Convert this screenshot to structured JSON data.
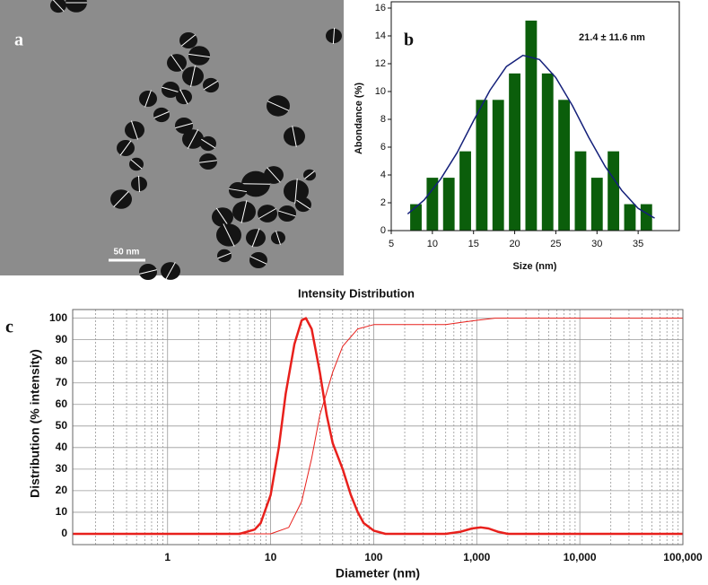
{
  "image": {
    "label": "a",
    "scale_bar": "50 nm"
  },
  "chart_data": [
    {
      "type": "bar",
      "label": "b",
      "annotation": "21.4 ± 11.6 nm",
      "xlabel": "Size (nm)",
      "ylabel": "Abondance (%)",
      "x": [
        8,
        10,
        12,
        14,
        16,
        18,
        20,
        22,
        24,
        26,
        28,
        30,
        32,
        34,
        36
      ],
      "values": [
        1.9,
        3.8,
        3.8,
        5.7,
        9.4,
        9.4,
        11.3,
        15.1,
        11.3,
        9.4,
        5.7,
        3.8,
        5.7,
        1.9,
        1.9
      ],
      "color": "#0b5e0b",
      "fit": {
        "x": [
          7,
          9,
          11,
          13,
          15,
          17,
          19,
          21,
          23,
          25,
          27,
          29,
          31,
          33,
          35,
          37
        ],
        "values": [
          1.2,
          2.2,
          3.7,
          5.6,
          7.9,
          10.1,
          11.8,
          12.6,
          12.3,
          11.0,
          9.0,
          6.7,
          4.6,
          2.9,
          1.6,
          0.9
        ],
        "color": "#14207a"
      },
      "xlim": [
        5,
        40
      ],
      "xticks": [
        5,
        10,
        15,
        20,
        25,
        30,
        35
      ],
      "ylim": [
        0,
        16
      ],
      "yticks": [
        0,
        2,
        4,
        6,
        8,
        10,
        12,
        14,
        16
      ]
    },
    {
      "type": "line",
      "label": "c",
      "title": "Intensity Distribution",
      "xlabel": "Diameter (nm)",
      "ylabel": "Distribution (% intensity)",
      "log_x": true,
      "grid": true,
      "minor_grid": true,
      "series": [
        {
          "x": [
            0.12,
            5,
            7,
            8,
            10,
            12,
            14,
            17,
            20,
            22,
            25,
            30,
            35,
            40,
            50,
            60,
            70,
            80,
            100,
            130,
            500,
            700,
            900,
            1100,
            1300,
            1600,
            2000,
            100000
          ],
          "values": [
            0,
            0,
            2,
            5,
            18,
            40,
            65,
            88,
            99,
            100,
            95,
            75,
            55,
            42,
            30,
            18,
            10,
            5,
            1.5,
            0,
            0,
            1,
            2.5,
            3,
            2.5,
            1,
            0,
            0
          ],
          "color": "#e8201c",
          "linewidth": 2.5
        },
        {
          "x": [
            0.12,
            10,
            15,
            20,
            25,
            30,
            40,
            50,
            70,
            100,
            500,
            700,
            1000,
            1500,
            100000
          ],
          "values": [
            0,
            0,
            3,
            15,
            35,
            55,
            75,
            87,
            95,
            97,
            97,
            98,
            99,
            100,
            100
          ],
          "color": "#e8201c",
          "linewidth": 1
        }
      ],
      "xlim": [
        0.12,
        100000
      ],
      "xticks": [
        1,
        10,
        100,
        {
          "value": 1000,
          "label": "1,000"
        },
        {
          "value": 10000,
          "label": "10,000"
        },
        {
          "value": 100000,
          "label": "100,000"
        }
      ],
      "ylim": [
        -5,
        104
      ],
      "yticks": [
        0,
        10,
        20,
        30,
        40,
        50,
        60,
        70,
        80,
        90,
        100
      ]
    }
  ]
}
